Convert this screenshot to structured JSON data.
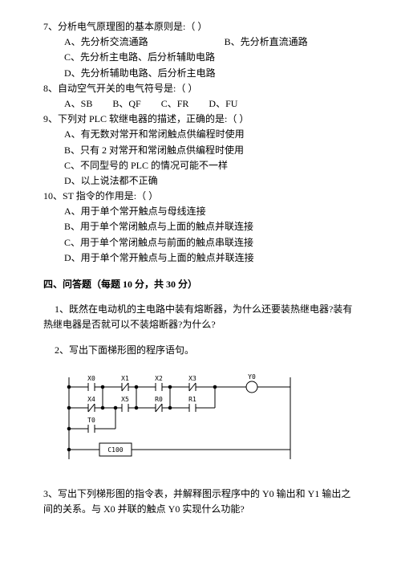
{
  "q7": {
    "stem": "7、分析电气原理图的基本原则是:（    ）",
    "A": "A、先分析交流通路",
    "B": "B、先分析直流通路",
    "C": "C、先分析主电路、后分析辅助电路",
    "D": "D、先分析辅助电路、后分析主电路"
  },
  "q8": {
    "stem": "8、自动空气开关的电气符号是:（    ）",
    "A": "A、SB",
    "B": "B、QF",
    "C": "C、FR",
    "D": "D、FU"
  },
  "q9": {
    "stem": "9、下列对 PLC 软继电器的描述，正确的是:（    ）",
    "A": "A、有无数对常开和常闭触点供编程时使用",
    "B": "B、只有 2 对常开和常闭触点供编程时使用",
    "C": "C、不同型号的 PLC 的情况可能不一样",
    "D": "D、以上说法都不正确"
  },
  "q10": {
    "stem": "10、ST 指令的作用是:（    ）",
    "A": "A、用于单个常开触点与母线连接",
    "B": "B、用于单个常闭触点与上面的触点并联连接",
    "C": "C、用于单个常闭触点与前面的触点串联连接",
    "D": "D、用于单个常开触点与上面的触点并联连接"
  },
  "section4": {
    "title": "四、问答题（每题 10 分，共 30 分）",
    "q1": "1、既然在电动机的主电路中装有熔断器，为什么还要装热继电器?装有热继电器是否就可以不装熔断器?为什么?",
    "q2": "2、写出下面梯形图的程序语句。",
    "q3": "3、写出下列梯形图的指令表，并解释图示程序中的 Y0 输出和 Y1 输出之间的关系。与 X0 并联的触点 Y0 实现什么功能?"
  },
  "ladder": {
    "labels": {
      "X0": "X0",
      "X1": "X1",
      "X2": "X2",
      "X3": "X3",
      "Y0": "Y0",
      "X4": "X4",
      "X5": "X5",
      "R0": "R0",
      "R1": "R1",
      "T0": "T0",
      "C100": "C100"
    },
    "colors": {
      "stroke": "#000000",
      "text": "#000000",
      "bg": "#ffffff"
    },
    "stroke_width": 1,
    "font_size": 8
  }
}
